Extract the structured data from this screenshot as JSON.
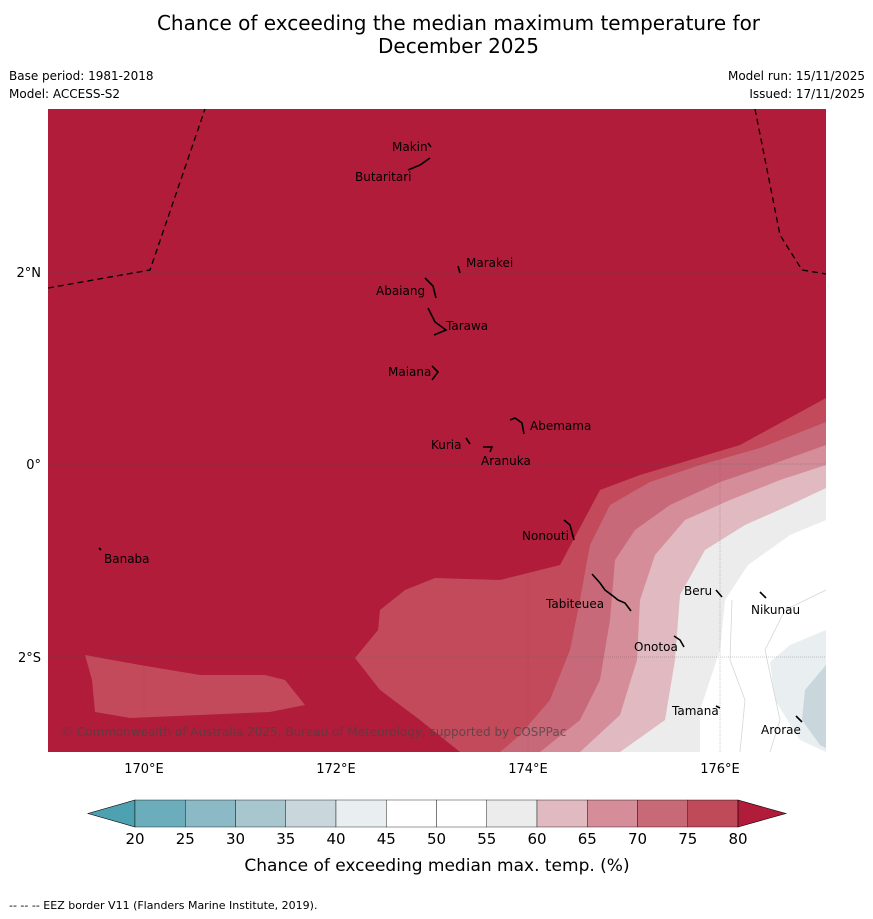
{
  "title_line1": "Chance of exceeding the median maximum temperature for",
  "title_line2": "December 2025",
  "meta": {
    "base_period": "Base period: 1981-2018",
    "model": "Model: ACCESS-S2",
    "model_run": "Model run: 15/11/2025",
    "issued": "Issued: 17/11/2025"
  },
  "map": {
    "lat_labels": [
      "2°N",
      "0°",
      "2°S"
    ],
    "lon_labels": [
      "170°E",
      "172°E",
      "174°E",
      "176°E"
    ],
    "places": [
      "Makin",
      "Butaritari",
      "Marakei",
      "Abaiang",
      "Tarawa",
      "Maiana",
      "Abemama",
      "Kuria",
      "Aranuka",
      "Nonouti",
      "Banaba",
      "Tabiteuea",
      "Beru",
      "Nikunau",
      "Onotoa",
      "Tamana",
      "Arorae"
    ],
    "copyright": "© Commonwealth of Australia 2025, Bureau of Meteorology, supported by COSPPac"
  },
  "legend": {
    "ticks": [
      "20",
      "25",
      "30",
      "35",
      "40",
      "45",
      "50",
      "55",
      "60",
      "65",
      "70",
      "75",
      "80"
    ],
    "colors": [
      "#6cadbc",
      "#8bbac6",
      "#a7c6cd",
      "#c9d7dc",
      "#e9eef0",
      "#ffffff",
      "#ffffff",
      "#ececec",
      "#e0b9c1",
      "#d48d99",
      "#c76977",
      "#bf4a5a"
    ],
    "low_color": "#4ea1b1",
    "high_color": "#b01c3a",
    "label": "Chance of exceeding median max. temp. (%)"
  },
  "footer": "--  --  -- EEZ border V11 (Flanders Marine Institute, 2019)."
}
